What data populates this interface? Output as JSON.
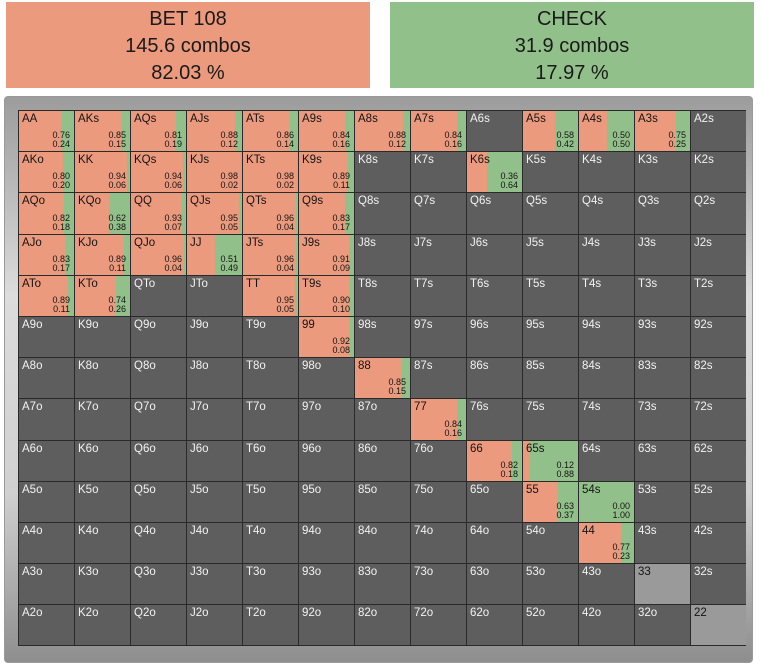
{
  "summary": {
    "bet": {
      "label": "BET 108",
      "combos": "145.6 combos",
      "pct": "82.03 %"
    },
    "check": {
      "label": "CHECK",
      "combos": "31.9 combos",
      "pct": "17.97 %"
    }
  },
  "colors": {
    "bet": "#ec9a7e",
    "check": "#92c08a",
    "empty": "#5e5e5e",
    "not_in_range": "#9a9a9a"
  },
  "grid": {
    "ranks": [
      "A",
      "K",
      "Q",
      "J",
      "T",
      "9",
      "8",
      "7",
      "6",
      "5",
      "4",
      "3",
      "2"
    ],
    "rows": [
      [
        {
          "hand": "AA",
          "bet": 0.76,
          "check": 0.24,
          "bet_label": "0.76",
          "check_label": "0.24"
        },
        {
          "hand": "AKs",
          "bet": 0.85,
          "check": 0.15,
          "bet_label": "0.85",
          "check_label": "0.15"
        },
        {
          "hand": "AQs",
          "bet": 0.81,
          "check": 0.19,
          "bet_label": "0.81",
          "check_label": "0.19"
        },
        {
          "hand": "AJs",
          "bet": 0.88,
          "check": 0.12,
          "bet_label": "0.88",
          "check_label": "0.12"
        },
        {
          "hand": "ATs",
          "bet": 0.86,
          "check": 0.14,
          "bet_label": "0.86",
          "check_label": "0.14"
        },
        {
          "hand": "A9s",
          "bet": 0.84,
          "check": 0.16,
          "bet_label": "0.84",
          "check_label": "0.16"
        },
        {
          "hand": "A8s",
          "bet": 0.88,
          "check": 0.12,
          "bet_label": "0.88",
          "check_label": "0.12"
        },
        {
          "hand": "A7s",
          "bet": 0.84,
          "check": 0.16,
          "bet_label": "0.84",
          "check_label": "0.16"
        },
        {
          "hand": "A6s"
        },
        {
          "hand": "A5s",
          "bet": 0.58,
          "check": 0.42,
          "bet_label": "0.58",
          "check_label": "0.42"
        },
        {
          "hand": "A4s",
          "bet": 0.5,
          "check": 0.5,
          "bet_label": "0.50",
          "check_label": "0.50"
        },
        {
          "hand": "A3s",
          "bet": 0.75,
          "check": 0.25,
          "bet_label": "0.75",
          "check_label": "0.25"
        },
        {
          "hand": "A2s"
        }
      ],
      [
        {
          "hand": "AKo",
          "bet": 0.8,
          "check": 0.2,
          "bet_label": "0.80",
          "check_label": "0.20"
        },
        {
          "hand": "KK",
          "bet": 0.94,
          "check": 0.06,
          "bet_label": "0.94",
          "check_label": "0.06"
        },
        {
          "hand": "KQs",
          "bet": 0.94,
          "check": 0.06,
          "bet_label": "0.94",
          "check_label": "0.06"
        },
        {
          "hand": "KJs",
          "bet": 0.98,
          "check": 0.02,
          "bet_label": "0.98",
          "check_label": "0.02"
        },
        {
          "hand": "KTs",
          "bet": 0.98,
          "check": 0.02,
          "bet_label": "0.98",
          "check_label": "0.02"
        },
        {
          "hand": "K9s",
          "bet": 0.89,
          "check": 0.11,
          "bet_label": "0.89",
          "check_label": "0.11"
        },
        {
          "hand": "K8s"
        },
        {
          "hand": "K7s"
        },
        {
          "hand": "K6s",
          "bet": 0.36,
          "check": 0.64,
          "bet_label": "0.36",
          "check_label": "0.64"
        },
        {
          "hand": "K5s"
        },
        {
          "hand": "K4s"
        },
        {
          "hand": "K3s"
        },
        {
          "hand": "K2s"
        }
      ],
      [
        {
          "hand": "AQo",
          "bet": 0.82,
          "check": 0.18,
          "bet_label": "0.82",
          "check_label": "0.18"
        },
        {
          "hand": "KQo",
          "bet": 0.62,
          "check": 0.38,
          "bet_label": "0.62",
          "check_label": "0.38"
        },
        {
          "hand": "QQ",
          "bet": 0.93,
          "check": 0.07,
          "bet_label": "0.93",
          "check_label": "0.07"
        },
        {
          "hand": "QJs",
          "bet": 0.95,
          "check": 0.05,
          "bet_label": "0.95",
          "check_label": "0.05"
        },
        {
          "hand": "QTs",
          "bet": 0.96,
          "check": 0.04,
          "bet_label": "0.96",
          "check_label": "0.04"
        },
        {
          "hand": "Q9s",
          "bet": 0.83,
          "check": 0.17,
          "bet_label": "0.83",
          "check_label": "0.17"
        },
        {
          "hand": "Q8s"
        },
        {
          "hand": "Q7s"
        },
        {
          "hand": "Q6s"
        },
        {
          "hand": "Q5s"
        },
        {
          "hand": "Q4s"
        },
        {
          "hand": "Q3s"
        },
        {
          "hand": "Q2s"
        }
      ],
      [
        {
          "hand": "AJo",
          "bet": 0.83,
          "check": 0.17,
          "bet_label": "0.83",
          "check_label": "0.17"
        },
        {
          "hand": "KJo",
          "bet": 0.89,
          "check": 0.11,
          "bet_label": "0.89",
          "check_label": "0.11"
        },
        {
          "hand": "QJo",
          "bet": 0.96,
          "check": 0.04,
          "bet_label": "0.96",
          "check_label": "0.04"
        },
        {
          "hand": "JJ",
          "bet": 0.51,
          "check": 0.49,
          "bet_label": "0.51",
          "check_label": "0.49"
        },
        {
          "hand": "JTs",
          "bet": 0.96,
          "check": 0.04,
          "bet_label": "0.96",
          "check_label": "0.04"
        },
        {
          "hand": "J9s",
          "bet": 0.91,
          "check": 0.09,
          "bet_label": "0.91",
          "check_label": "0.09"
        },
        {
          "hand": "J8s"
        },
        {
          "hand": "J7s"
        },
        {
          "hand": "J6s"
        },
        {
          "hand": "J5s"
        },
        {
          "hand": "J4s"
        },
        {
          "hand": "J3s"
        },
        {
          "hand": "J2s"
        }
      ],
      [
        {
          "hand": "ATo",
          "bet": 0.89,
          "check": 0.11,
          "bet_label": "0.89",
          "check_label": "0.11"
        },
        {
          "hand": "KTo",
          "bet": 0.74,
          "check": 0.26,
          "bet_label": "0.74",
          "check_label": "0.26"
        },
        {
          "hand": "QTo"
        },
        {
          "hand": "JTo"
        },
        {
          "hand": "TT",
          "bet": 0.95,
          "check": 0.05,
          "bet_label": "0.95",
          "check_label": "0.05"
        },
        {
          "hand": "T9s",
          "bet": 0.9,
          "check": 0.1,
          "bet_label": "0.90",
          "check_label": "0.10"
        },
        {
          "hand": "T8s"
        },
        {
          "hand": "T7s"
        },
        {
          "hand": "T6s"
        },
        {
          "hand": "T5s"
        },
        {
          "hand": "T4s"
        },
        {
          "hand": "T3s"
        },
        {
          "hand": "T2s"
        }
      ],
      [
        {
          "hand": "A9o"
        },
        {
          "hand": "K9o"
        },
        {
          "hand": "Q9o"
        },
        {
          "hand": "J9o"
        },
        {
          "hand": "T9o"
        },
        {
          "hand": "99",
          "bet": 0.92,
          "check": 0.08,
          "bet_label": "0.92",
          "check_label": "0.08"
        },
        {
          "hand": "98s"
        },
        {
          "hand": "97s"
        },
        {
          "hand": "96s"
        },
        {
          "hand": "95s"
        },
        {
          "hand": "94s"
        },
        {
          "hand": "93s"
        },
        {
          "hand": "92s"
        }
      ],
      [
        {
          "hand": "A8o"
        },
        {
          "hand": "K8o"
        },
        {
          "hand": "Q8o"
        },
        {
          "hand": "J8o"
        },
        {
          "hand": "T8o"
        },
        {
          "hand": "98o"
        },
        {
          "hand": "88",
          "bet": 0.85,
          "check": 0.15,
          "bet_label": "0.85",
          "check_label": "0.15"
        },
        {
          "hand": "87s"
        },
        {
          "hand": "86s"
        },
        {
          "hand": "85s"
        },
        {
          "hand": "84s"
        },
        {
          "hand": "83s"
        },
        {
          "hand": "82s"
        }
      ],
      [
        {
          "hand": "A7o"
        },
        {
          "hand": "K7o"
        },
        {
          "hand": "Q7o"
        },
        {
          "hand": "J7o"
        },
        {
          "hand": "T7o"
        },
        {
          "hand": "97o"
        },
        {
          "hand": "87o"
        },
        {
          "hand": "77",
          "bet": 0.84,
          "check": 0.16,
          "bet_label": "0.84",
          "check_label": "0.16"
        },
        {
          "hand": "76s"
        },
        {
          "hand": "75s"
        },
        {
          "hand": "74s"
        },
        {
          "hand": "73s"
        },
        {
          "hand": "72s"
        }
      ],
      [
        {
          "hand": "A6o"
        },
        {
          "hand": "K6o"
        },
        {
          "hand": "Q6o"
        },
        {
          "hand": "J6o"
        },
        {
          "hand": "T6o"
        },
        {
          "hand": "96o"
        },
        {
          "hand": "86o"
        },
        {
          "hand": "76o"
        },
        {
          "hand": "66",
          "bet": 0.82,
          "check": 0.18,
          "bet_label": "0.82",
          "check_label": "0.18"
        },
        {
          "hand": "65s",
          "bet": 0.12,
          "check": 0.88,
          "bet_label": "0.12",
          "check_label": "0.88"
        },
        {
          "hand": "64s"
        },
        {
          "hand": "63s"
        },
        {
          "hand": "62s"
        }
      ],
      [
        {
          "hand": "A5o"
        },
        {
          "hand": "K5o"
        },
        {
          "hand": "Q5o"
        },
        {
          "hand": "J5o"
        },
        {
          "hand": "T5o"
        },
        {
          "hand": "95o"
        },
        {
          "hand": "85o"
        },
        {
          "hand": "75o"
        },
        {
          "hand": "65o"
        },
        {
          "hand": "55",
          "bet": 0.63,
          "check": 0.37,
          "bet_label": "0.63",
          "check_label": "0.37"
        },
        {
          "hand": "54s",
          "bet": 0.0,
          "check": 1.0,
          "bet_label": "0.00",
          "check_label": "1.00"
        },
        {
          "hand": "53s"
        },
        {
          "hand": "52s"
        }
      ],
      [
        {
          "hand": "A4o"
        },
        {
          "hand": "K4o"
        },
        {
          "hand": "Q4o"
        },
        {
          "hand": "J4o"
        },
        {
          "hand": "T4o"
        },
        {
          "hand": "94o"
        },
        {
          "hand": "84o"
        },
        {
          "hand": "74o"
        },
        {
          "hand": "64o"
        },
        {
          "hand": "54o"
        },
        {
          "hand": "44",
          "bet": 0.77,
          "check": 0.23,
          "bet_label": "0.77",
          "check_label": "0.23"
        },
        {
          "hand": "43s"
        },
        {
          "hand": "42s"
        }
      ],
      [
        {
          "hand": "A3o"
        },
        {
          "hand": "K3o"
        },
        {
          "hand": "Q3o"
        },
        {
          "hand": "J3o"
        },
        {
          "hand": "T3o"
        },
        {
          "hand": "93o"
        },
        {
          "hand": "83o"
        },
        {
          "hand": "73o"
        },
        {
          "hand": "63o"
        },
        {
          "hand": "53o"
        },
        {
          "hand": "43o"
        },
        {
          "hand": "33",
          "state": "not_in_range"
        },
        {
          "hand": "32s"
        }
      ],
      [
        {
          "hand": "A2o"
        },
        {
          "hand": "K2o"
        },
        {
          "hand": "Q2o"
        },
        {
          "hand": "J2o"
        },
        {
          "hand": "T2o"
        },
        {
          "hand": "92o"
        },
        {
          "hand": "82o"
        },
        {
          "hand": "72o"
        },
        {
          "hand": "62o"
        },
        {
          "hand": "52o"
        },
        {
          "hand": "42o"
        },
        {
          "hand": "32o"
        },
        {
          "hand": "22",
          "state": "not_in_range"
        }
      ]
    ]
  }
}
